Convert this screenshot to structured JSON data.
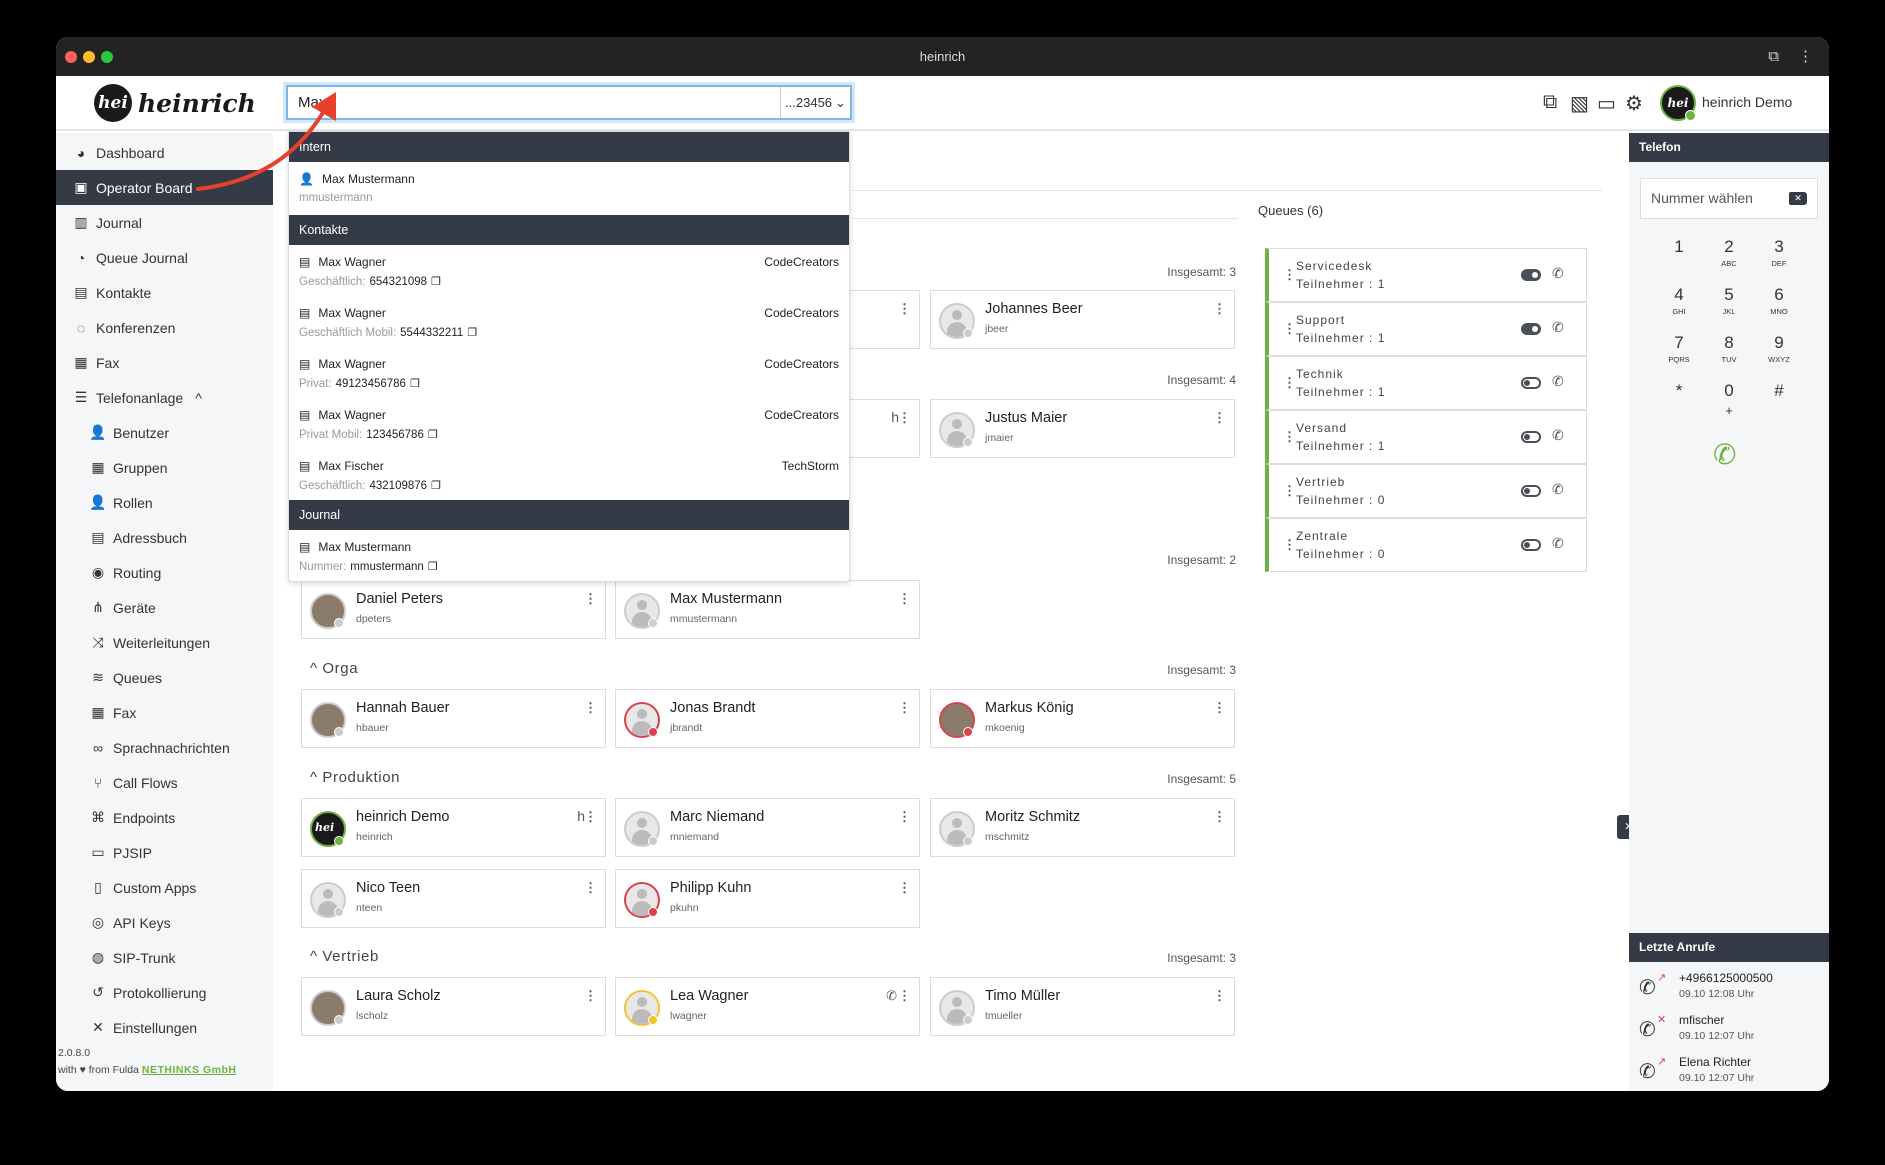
{
  "window": {
    "title": "heinrich"
  },
  "header": {
    "logo_mark": "hei",
    "logo_text": "heinrich",
    "search_value": "Max",
    "number_select": "...23456",
    "user_name": "heinrich Demo",
    "icons": [
      "external-link-icon",
      "fax-off-icon",
      "monitor-icon",
      "gear-icon"
    ]
  },
  "sidebar": {
    "items": [
      {
        "label": "Dashboard",
        "icon": "gauge-icon",
        "glyph": "◕"
      },
      {
        "label": "Operator Board",
        "icon": "operator-icon",
        "glyph": "▣",
        "active": true
      },
      {
        "label": "Journal",
        "icon": "book-icon",
        "glyph": "▥"
      },
      {
        "label": "Queue Journal",
        "icon": "pie-chart-icon",
        "glyph": "◔"
      },
      {
        "label": "Kontakte",
        "icon": "address-card-icon",
        "glyph": "▤"
      },
      {
        "label": "Konferenzen",
        "icon": "comments-icon",
        "glyph": "◌"
      },
      {
        "label": "Fax",
        "icon": "fax-icon",
        "glyph": "▦"
      },
      {
        "label": "Telefonanlage",
        "icon": "server-icon",
        "glyph": "☰",
        "expanded": true
      },
      {
        "label": "Benutzer",
        "icon": "user-edit-icon",
        "glyph": "👤",
        "sub": true
      },
      {
        "label": "Gruppen",
        "icon": "users-icon",
        "glyph": "▦",
        "sub": true
      },
      {
        "label": "Rollen",
        "icon": "user-lock-icon",
        "glyph": "👤",
        "sub": true
      },
      {
        "label": "Adressbuch",
        "icon": "address-book-icon",
        "glyph": "▤",
        "sub": true
      },
      {
        "label": "Routing",
        "icon": "compass-icon",
        "glyph": "◉",
        "sub": true
      },
      {
        "label": "Geräte",
        "icon": "sitemap-icon",
        "glyph": "⋔",
        "sub": true
      },
      {
        "label": "Weiterleitungen",
        "icon": "shuffle-icon",
        "glyph": "⤨",
        "sub": true
      },
      {
        "label": "Queues",
        "icon": "layers-icon",
        "glyph": "≋",
        "sub": true
      },
      {
        "label": "Fax",
        "icon": "fax-icon",
        "glyph": "▦",
        "sub": true
      },
      {
        "label": "Sprachnachrichten",
        "icon": "voicemail-icon",
        "glyph": "∞",
        "sub": true
      },
      {
        "label": "Call Flows",
        "icon": "flow-icon",
        "glyph": "⑂",
        "sub": true
      },
      {
        "label": "Endpoints",
        "icon": "network-icon",
        "glyph": "⌘",
        "sub": true
      },
      {
        "label": "PJSIP",
        "icon": "hdd-icon",
        "glyph": "▭",
        "sub": true
      },
      {
        "label": "Custom Apps",
        "icon": "file-code-icon",
        "glyph": "▯",
        "sub": true
      },
      {
        "label": "API Keys",
        "icon": "fingerprint-icon",
        "glyph": "◎",
        "sub": true
      },
      {
        "label": "SIP-Trunk",
        "icon": "globe-icon",
        "glyph": "◍",
        "sub": true
      },
      {
        "label": "Protokollierung",
        "icon": "history-icon",
        "glyph": "↺",
        "sub": true
      },
      {
        "label": "Einstellungen",
        "icon": "tools-icon",
        "glyph": "✕",
        "sub": true
      }
    ],
    "version": "2.0.8.0",
    "footer_pre": "with",
    "footer_mid": "from Fulda",
    "footer_link": "NETHINKS GmbH"
  },
  "dropdown": {
    "sections": [
      {
        "title": "Intern",
        "items": [
          {
            "icon": "user-icon",
            "name": "Max Mustermann",
            "sub": "mmustermann"
          }
        ]
      },
      {
        "title": "Kontakte",
        "items": [
          {
            "icon": "address-card-icon",
            "name": "Max Wagner",
            "org": "CodeCreators",
            "label": "Geschäftlich:",
            "number": "654321098"
          },
          {
            "icon": "address-card-icon",
            "name": "Max Wagner",
            "org": "CodeCreators",
            "label": "Geschäftlich Mobil:",
            "number": "5544332211"
          },
          {
            "icon": "address-card-icon",
            "name": "Max Wagner",
            "org": "CodeCreators",
            "label": "Privat:",
            "number": "49123456786"
          },
          {
            "icon": "address-card-icon",
            "name": "Max Wagner",
            "org": "CodeCreators",
            "label": "Privat Mobil:",
            "number": "123456786"
          },
          {
            "icon": "address-card-icon",
            "name": "Max Fischer",
            "org": "TechStorm",
            "label": "Geschäftlich:",
            "number": "432109876"
          }
        ]
      },
      {
        "title": "Journal",
        "items": [
          {
            "icon": "address-card-icon",
            "name": "Max Mustermann",
            "label": "Nummer:",
            "number": "mmustermann"
          }
        ]
      }
    ]
  },
  "groups": [
    {
      "title": "",
      "total": "Insgesamt: 3",
      "rows": [
        [
          {
            "hidden": true
          },
          {
            "name": "",
            "sub": ""
          },
          {
            "name": "Johannes Beer",
            "sub": "jbeer",
            "status": "offline"
          }
        ]
      ]
    },
    {
      "title": "",
      "total": "Insgesamt: 4",
      "rows": [
        [
          {
            "hidden": true
          },
          {
            "name": "",
            "sub": "",
            "h": "h"
          },
          {
            "name": "Justus Maier",
            "sub": "jmaier",
            "status": "offline"
          }
        ]
      ]
    },
    {
      "title": "",
      "total": "Insgesamt: 2",
      "rows": [
        [
          {
            "name": "Daniel Peters",
            "sub": "dpeters",
            "status": "offline",
            "photo": true
          },
          {
            "name": "Max Mustermann",
            "sub": "mmustermann",
            "status": "offline"
          }
        ]
      ]
    },
    {
      "title": "Orga",
      "total": "Insgesamt: 3",
      "rows": [
        [
          {
            "name": "Hannah Bauer",
            "sub": "hbauer",
            "status": "offline",
            "photo": true
          },
          {
            "name": "Jonas Brandt",
            "sub": "jbrandt",
            "status": "busy"
          },
          {
            "name": "Markus König",
            "sub": "mkoenig",
            "status": "busy",
            "photo": true
          }
        ]
      ]
    },
    {
      "title": "Produktion",
      "total": "Insgesamt: 5",
      "rows": [
        [
          {
            "name": "heinrich Demo",
            "sub": "heinrich",
            "status": "online",
            "h": "h",
            "logo": true
          },
          {
            "name": "Marc Niemand",
            "sub": "mniemand",
            "status": "offline"
          },
          {
            "name": "Moritz Schmitz",
            "sub": "mschmitz",
            "status": "offline"
          }
        ],
        [
          {
            "name": "Nico Teen",
            "sub": "nteen",
            "status": "offline"
          },
          {
            "name": "Philipp Kuhn",
            "sub": "pkuhn",
            "status": "busy"
          }
        ]
      ]
    },
    {
      "title": "Vertrieb",
      "total": "Insgesamt: 3",
      "rows": [
        [
          {
            "name": "Laura Scholz",
            "sub": "lscholz",
            "status": "offline",
            "photo": true
          },
          {
            "name": "Lea Wagner",
            "sub": "lwagner",
            "status": "away",
            "phone": true
          },
          {
            "name": "Timo Müller",
            "sub": "tmueller",
            "status": "offline"
          }
        ]
      ]
    }
  ],
  "queues": {
    "title": "Queues (6)",
    "items": [
      {
        "name": "Servicedesk",
        "count": "Teilnehmer : 1",
        "active": true
      },
      {
        "name": "Support",
        "count": "Teilnehmer : 1",
        "active": true
      },
      {
        "name": "Technik",
        "count": "Teilnehmer : 1",
        "active": false
      },
      {
        "name": "Versand",
        "count": "Teilnehmer : 1",
        "active": false
      },
      {
        "name": "Vertrieb",
        "count": "Teilnehmer : 0",
        "active": false
      },
      {
        "name": "Zentrale",
        "count": "Teilnehmer : 0",
        "active": false
      }
    ]
  },
  "phone": {
    "title": "Telefon",
    "placeholder": "Nummer wählen",
    "keys": [
      {
        "d": "1",
        "l": ""
      },
      {
        "d": "2",
        "l": "ABC"
      },
      {
        "d": "3",
        "l": "DEF"
      },
      {
        "d": "4",
        "l": "GHI"
      },
      {
        "d": "5",
        "l": "JKL"
      },
      {
        "d": "6",
        "l": "MNO"
      },
      {
        "d": "7",
        "l": "PQRS"
      },
      {
        "d": "8",
        "l": "TUV"
      },
      {
        "d": "9",
        "l": "WXYZ"
      },
      {
        "d": "*",
        "l": ""
      },
      {
        "d": "0",
        "l": "+"
      },
      {
        "d": "#",
        "l": ""
      }
    ],
    "recent_title": "Letzte Anrufe",
    "recent": [
      {
        "name": "+4966125000500",
        "time": "09.10 12:08 Uhr",
        "type": "outgoing"
      },
      {
        "name": "mfischer",
        "time": "09.10 12:07 Uhr",
        "type": "missed"
      },
      {
        "name": "Elena Richter",
        "time": "09.10 12:07 Uhr",
        "type": "outgoing"
      }
    ]
  },
  "colors": {
    "dark": "#343a46",
    "accent_green": "#6cb33f",
    "busy": "#d9434e",
    "away": "#f0c431",
    "annotation_arrow": "#e8402a"
  }
}
